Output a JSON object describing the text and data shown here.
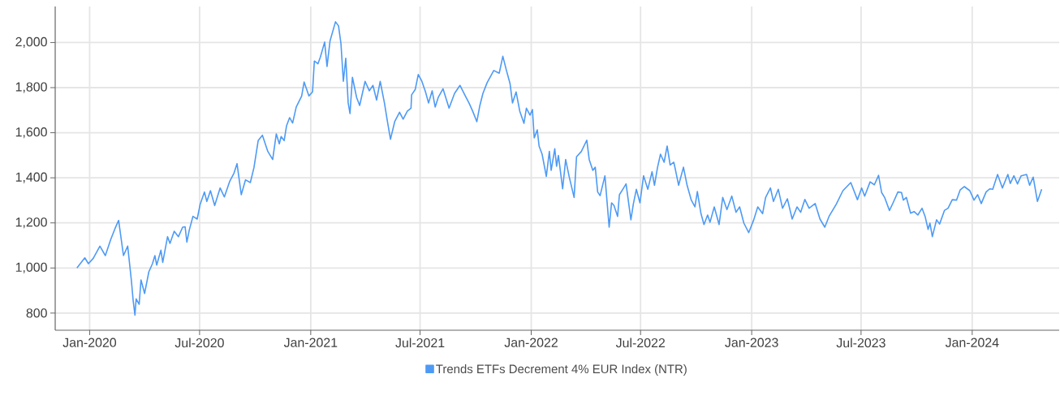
{
  "chart_data": {
    "type": "line",
    "legend": "bottom",
    "grid": true,
    "line_style": "solid",
    "marker": "none",
    "xlim": [
      "2019-11-05",
      "2024-05-24"
    ],
    "ylim": [
      724,
      2160
    ],
    "xticks": [
      {
        "value": "2020-01-01",
        "label": "Jan-2020"
      },
      {
        "value": "2020-07-01",
        "label": "Jul-2020"
      },
      {
        "value": "2021-01-01",
        "label": "Jan-2021"
      },
      {
        "value": "2021-07-01",
        "label": "Jul-2021"
      },
      {
        "value": "2022-01-01",
        "label": "Jan-2022"
      },
      {
        "value": "2022-07-01",
        "label": "Jul-2022"
      },
      {
        "value": "2023-01-01",
        "label": "Jan-2023"
      },
      {
        "value": "2023-07-01",
        "label": "Jul-2023"
      },
      {
        "value": "2024-01-01",
        "label": "Jan-2024"
      }
    ],
    "yticks": [
      800,
      {
        "value": 1000,
        "label": "1,000"
      },
      {
        "value": 1200,
        "label": "1,200"
      },
      {
        "value": 1400,
        "label": "1,400"
      },
      {
        "value": 1600,
        "label": "1,600"
      },
      {
        "value": 1800,
        "label": "1,800"
      },
      {
        "value": 2000,
        "label": "2,000"
      }
    ],
    "x": [
      "2019-12-11",
      "2019-12-24",
      "2019-12-30",
      "2020-01-07",
      "2020-01-18",
      "2020-01-27",
      "2020-02-05",
      "2020-02-12",
      "2020-02-18",
      "2020-02-26",
      "2020-03-04",
      "2020-03-10",
      "2020-03-13",
      "2020-03-16",
      "2020-03-18",
      "2020-03-23",
      "2020-03-26",
      "2020-04-01",
      "2020-04-08",
      "2020-04-14",
      "2020-04-18",
      "2020-04-21",
      "2020-04-28",
      "2020-05-01",
      "2020-05-09",
      "2020-05-13",
      "2020-05-20",
      "2020-05-27",
      "2020-06-03",
      "2020-06-07",
      "2020-06-10",
      "2020-06-14",
      "2020-06-20",
      "2020-06-27",
      "2020-07-02",
      "2020-07-09",
      "2020-07-13",
      "2020-07-19",
      "2020-07-26",
      "2020-08-04",
      "2020-08-11",
      "2020-08-20",
      "2020-08-27",
      "2020-09-01",
      "2020-09-08",
      "2020-09-15",
      "2020-09-23",
      "2020-09-29",
      "2020-10-06",
      "2020-10-13",
      "2020-10-22",
      "2020-10-30",
      "2020-11-05",
      "2020-11-10",
      "2020-11-13",
      "2020-11-18",
      "2020-11-22",
      "2020-11-27",
      "2020-12-02",
      "2020-12-08",
      "2020-12-17",
      "2020-12-21",
      "2020-12-29",
      "2021-01-04",
      "2021-01-07",
      "2021-01-13",
      "2021-01-17",
      "2021-01-24",
      "2021-01-28",
      "2021-02-02",
      "2021-02-11",
      "2021-02-16",
      "2021-02-20",
      "2021-02-24",
      "2021-02-28",
      "2021-03-04",
      "2021-03-07",
      "2021-03-11",
      "2021-03-18",
      "2021-03-23",
      "2021-04-01",
      "2021-04-08",
      "2021-04-14",
      "2021-04-20",
      "2021-04-26",
      "2021-05-03",
      "2021-05-08",
      "2021-05-13",
      "2021-05-20",
      "2021-05-28",
      "2021-06-03",
      "2021-06-10",
      "2021-06-16",
      "2021-06-17",
      "2021-06-23",
      "2021-06-28",
      "2021-07-04",
      "2021-07-10",
      "2021-07-15",
      "2021-07-21",
      "2021-07-26",
      "2021-07-31",
      "2021-08-08",
      "2021-08-18",
      "2021-08-27",
      "2021-09-05",
      "2021-09-14",
      "2021-09-20",
      "2021-09-26",
      "2021-10-03",
      "2021-10-08",
      "2021-10-13",
      "2021-10-20",
      "2021-10-31",
      "2021-11-09",
      "2021-11-15",
      "2021-11-21",
      "2021-11-27",
      "2021-12-01",
      "2021-12-07",
      "2021-12-13",
      "2021-12-20",
      "2021-12-24",
      "2021-12-30",
      "2022-01-03",
      "2022-01-06",
      "2022-01-11",
      "2022-01-14",
      "2022-01-19",
      "2022-01-26",
      "2022-01-31",
      "2022-02-03",
      "2022-02-09",
      "2022-02-12",
      "2022-02-15",
      "2022-02-22",
      "2022-02-27",
      "2022-03-05",
      "2022-03-13",
      "2022-03-17",
      "2022-03-25",
      "2022-04-03",
      "2022-04-07",
      "2022-04-13",
      "2022-04-17",
      "2022-04-21",
      "2022-04-25",
      "2022-05-03",
      "2022-05-10",
      "2022-05-14",
      "2022-05-18",
      "2022-05-24",
      "2022-05-27",
      "2022-06-03",
      "2022-06-07",
      "2022-06-15",
      "2022-06-19",
      "2022-06-24",
      "2022-06-30",
      "2022-07-06",
      "2022-07-13",
      "2022-07-20",
      "2022-07-24",
      "2022-07-29",
      "2022-08-03",
      "2022-08-09",
      "2022-08-14",
      "2022-08-19",
      "2022-08-25",
      "2022-08-27",
      "2022-09-02",
      "2022-09-10",
      "2022-09-16",
      "2022-09-23",
      "2022-09-29",
      "2022-10-03",
      "2022-10-09",
      "2022-10-14",
      "2022-10-20",
      "2022-10-24",
      "2022-10-31",
      "2022-11-08",
      "2022-11-14",
      "2022-11-21",
      "2022-11-29",
      "2022-12-06",
      "2022-12-12",
      "2022-12-19",
      "2022-12-27",
      "2023-01-04",
      "2023-01-11",
      "2023-01-19",
      "2023-01-24",
      "2023-02-01",
      "2023-02-06",
      "2023-02-14",
      "2023-02-21",
      "2023-03-01",
      "2023-03-09",
      "2023-03-17",
      "2023-03-23",
      "2023-03-30",
      "2023-04-06",
      "2023-04-16",
      "2023-04-24",
      "2023-05-02",
      "2023-05-09",
      "2023-05-21",
      "2023-06-01",
      "2023-06-14",
      "2023-06-25",
      "2023-07-02",
      "2023-07-07",
      "2023-07-16",
      "2023-07-23",
      "2023-07-30",
      "2023-08-04",
      "2023-08-09",
      "2023-08-17",
      "2023-08-23",
      "2023-08-31",
      "2023-09-06",
      "2023-09-09",
      "2023-09-14",
      "2023-09-21",
      "2023-09-27",
      "2023-10-03",
      "2023-10-10",
      "2023-10-15",
      "2023-10-20",
      "2023-10-23",
      "2023-10-27",
      "2023-11-03",
      "2023-11-08",
      "2023-11-16",
      "2023-11-22",
      "2023-11-29",
      "2023-12-06",
      "2023-12-12",
      "2023-12-19",
      "2023-12-28",
      "2024-01-04",
      "2024-01-10",
      "2024-01-16",
      "2024-01-24",
      "2024-01-30",
      "2024-02-04",
      "2024-02-12",
      "2024-02-20",
      "2024-02-29",
      "2024-03-04",
      "2024-03-10",
      "2024-03-16",
      "2024-03-22",
      "2024-03-31",
      "2024-04-05",
      "2024-04-11",
      "2024-04-18",
      "2024-04-25"
    ],
    "series": [
      {
        "name": "Trends ETFs Decrement 4% EUR Index (NTR)",
        "color": "#4d9af5",
        "values": [
          1000,
          1045,
          1019,
          1043,
          1097,
          1055,
          1127,
          1175,
          1211,
          1055,
          1097,
          947,
          857,
          791,
          863,
          839,
          947,
          887,
          983,
          1019,
          1055,
          1013,
          1079,
          1025,
          1139,
          1109,
          1163,
          1139,
          1181,
          1183,
          1115,
          1169,
          1229,
          1217,
          1283,
          1337,
          1295,
          1343,
          1277,
          1355,
          1315,
          1385,
          1421,
          1463,
          1325,
          1391,
          1379,
          1445,
          1565,
          1589,
          1517,
          1481,
          1595,
          1551,
          1583,
          1565,
          1631,
          1667,
          1643,
          1714,
          1763,
          1825,
          1763,
          1781,
          1918,
          1906,
          1936,
          2002,
          1894,
          2008,
          2092,
          2074,
          1996,
          1828,
          1930,
          1732,
          1685,
          1846,
          1756,
          1721,
          1828,
          1786,
          1810,
          1745,
          1828,
          1732,
          1649,
          1571,
          1649,
          1691,
          1660,
          1696,
          1709,
          1768,
          1792,
          1858,
          1828,
          1781,
          1732,
          1786,
          1714,
          1756,
          1795,
          1709,
          1774,
          1810,
          1763,
          1732,
          1696,
          1649,
          1721,
          1774,
          1822,
          1876,
          1864,
          1939,
          1876,
          1817,
          1732,
          1781,
          1696,
          1642,
          1709,
          1678,
          1703,
          1577,
          1613,
          1541,
          1505,
          1406,
          1517,
          1433,
          1529,
          1451,
          1499,
          1351,
          1481,
          1403,
          1313,
          1493,
          1517,
          1567,
          1481,
          1433,
          1447,
          1337,
          1321,
          1409,
          1181,
          1289,
          1277,
          1229,
          1325,
          1355,
          1373,
          1214,
          1283,
          1349,
          1289,
          1409,
          1349,
          1427,
          1367,
          1445,
          1505,
          1469,
          1541,
          1457,
          1469,
          1445,
          1367,
          1447,
          1367,
          1301,
          1271,
          1339,
          1241,
          1193,
          1235,
          1203,
          1271,
          1193,
          1313,
          1259,
          1319,
          1247,
          1271,
          1199,
          1157,
          1211,
          1271,
          1241,
          1313,
          1355,
          1295,
          1349,
          1265,
          1307,
          1217,
          1271,
          1247,
          1304,
          1265,
          1286,
          1217,
          1181,
          1229,
          1283,
          1343,
          1379,
          1303,
          1355,
          1319,
          1382,
          1369,
          1411,
          1335,
          1313,
          1255,
          1289,
          1337,
          1335,
          1301,
          1313,
          1243,
          1250,
          1235,
          1265,
          1229,
          1171,
          1199,
          1139,
          1214,
          1195,
          1255,
          1265,
          1303,
          1301,
          1346,
          1361,
          1343,
          1301,
          1325,
          1286,
          1337,
          1351,
          1349,
          1415,
          1355,
          1415,
          1375,
          1409,
          1373,
          1409,
          1415,
          1367,
          1403,
          1295,
          1349
        ]
      }
    ]
  }
}
